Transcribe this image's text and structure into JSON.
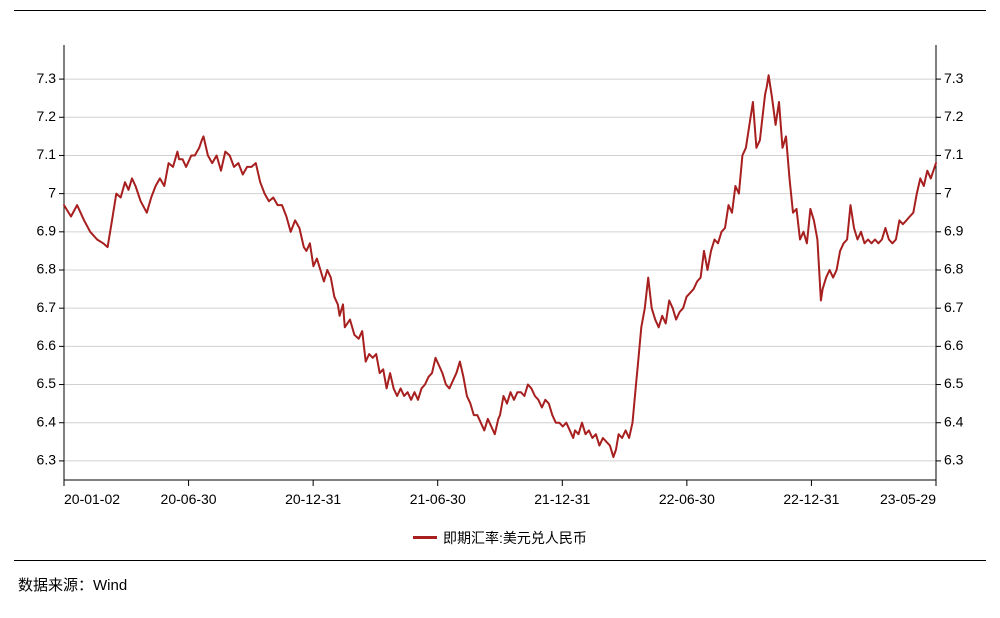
{
  "chart": {
    "type": "line",
    "series_name": "即期汇率:美元兑人民币",
    "line_color": "#a71f1f",
    "line_width": 2.0,
    "background_color": "#ffffff",
    "plot_border_color": "#000000",
    "plot_border_width": 1,
    "grid_color": "#d0d0d0",
    "grid_width": 1,
    "axis_label_fontsize": 14,
    "axis_label_color": "#000000",
    "ylim": [
      6.25,
      7.35
    ],
    "ytick_step": 0.1,
    "yticks": [
      6.3,
      6.4,
      6.5,
      6.6,
      6.7,
      6.8,
      6.9,
      7,
      7.1,
      7.2,
      7.3
    ],
    "ytick_labels": [
      "6.3",
      "6.4",
      "6.5",
      "6.6",
      "6.7",
      "6.8",
      "6.9",
      "7",
      "7.1",
      "7.2",
      "7.3"
    ],
    "x_range": [
      "2020-01-02",
      "2023-05-29"
    ],
    "xticks": [
      "2020-01-02",
      "2020-06-30",
      "2020-12-31",
      "2021-06-30",
      "2021-12-31",
      "2022-06-30",
      "2022-12-31",
      "2023-05-29"
    ],
    "xtick_labels": [
      "20-01-02",
      "20-06-30",
      "20-12-31",
      "21-06-30",
      "21-12-31",
      "22-06-30",
      "22-12-31",
      "23-05-29"
    ],
    "data": [
      [
        0.0,
        6.97
      ],
      [
        0.008,
        6.94
      ],
      [
        0.015,
        6.97
      ],
      [
        0.023,
        6.93
      ],
      [
        0.03,
        6.9
      ],
      [
        0.038,
        6.88
      ],
      [
        0.045,
        6.87
      ],
      [
        0.05,
        6.86
      ],
      [
        0.055,
        6.93
      ],
      [
        0.06,
        7.0
      ],
      [
        0.065,
        6.99
      ],
      [
        0.07,
        7.03
      ],
      [
        0.074,
        7.01
      ],
      [
        0.078,
        7.04
      ],
      [
        0.082,
        7.02
      ],
      [
        0.088,
        6.98
      ],
      [
        0.095,
        6.95
      ],
      [
        0.1,
        6.99
      ],
      [
        0.105,
        7.02
      ],
      [
        0.11,
        7.04
      ],
      [
        0.115,
        7.02
      ],
      [
        0.12,
        7.08
      ],
      [
        0.125,
        7.07
      ],
      [
        0.13,
        7.11
      ],
      [
        0.132,
        7.09
      ],
      [
        0.136,
        7.09
      ],
      [
        0.14,
        7.07
      ],
      [
        0.146,
        7.1
      ],
      [
        0.15,
        7.1
      ],
      [
        0.155,
        7.12
      ],
      [
        0.158,
        7.14
      ],
      [
        0.16,
        7.15
      ],
      [
        0.165,
        7.1
      ],
      [
        0.17,
        7.08
      ],
      [
        0.175,
        7.1
      ],
      [
        0.18,
        7.06
      ],
      [
        0.185,
        7.11
      ],
      [
        0.19,
        7.1
      ],
      [
        0.195,
        7.07
      ],
      [
        0.2,
        7.08
      ],
      [
        0.205,
        7.05
      ],
      [
        0.21,
        7.07
      ],
      [
        0.215,
        7.07
      ],
      [
        0.22,
        7.08
      ],
      [
        0.225,
        7.03
      ],
      [
        0.23,
        7.0
      ],
      [
        0.235,
        6.98
      ],
      [
        0.24,
        6.99
      ],
      [
        0.245,
        6.97
      ],
      [
        0.25,
        6.97
      ],
      [
        0.255,
        6.94
      ],
      [
        0.26,
        6.9
      ],
      [
        0.265,
        6.93
      ],
      [
        0.27,
        6.91
      ],
      [
        0.275,
        6.86
      ],
      [
        0.278,
        6.85
      ],
      [
        0.282,
        6.87
      ],
      [
        0.286,
        6.81
      ],
      [
        0.29,
        6.83
      ],
      [
        0.294,
        6.8
      ],
      [
        0.298,
        6.77
      ],
      [
        0.302,
        6.8
      ],
      [
        0.306,
        6.78
      ],
      [
        0.31,
        6.73
      ],
      [
        0.314,
        6.71
      ],
      [
        0.316,
        6.68
      ],
      [
        0.32,
        6.71
      ],
      [
        0.322,
        6.65
      ],
      [
        0.328,
        6.67
      ],
      [
        0.333,
        6.63
      ],
      [
        0.338,
        6.62
      ],
      [
        0.342,
        6.64
      ],
      [
        0.346,
        6.56
      ],
      [
        0.35,
        6.58
      ],
      [
        0.354,
        6.57
      ],
      [
        0.358,
        6.58
      ],
      [
        0.362,
        6.53
      ],
      [
        0.366,
        6.54
      ],
      [
        0.37,
        6.49
      ],
      [
        0.374,
        6.53
      ],
      [
        0.378,
        6.49
      ],
      [
        0.382,
        6.47
      ],
      [
        0.386,
        6.49
      ],
      [
        0.39,
        6.47
      ],
      [
        0.394,
        6.48
      ],
      [
        0.398,
        6.46
      ],
      [
        0.402,
        6.48
      ],
      [
        0.406,
        6.46
      ],
      [
        0.41,
        6.49
      ],
      [
        0.414,
        6.5
      ],
      [
        0.418,
        6.52
      ],
      [
        0.422,
        6.53
      ],
      [
        0.426,
        6.57
      ],
      [
        0.43,
        6.55
      ],
      [
        0.434,
        6.53
      ],
      [
        0.438,
        6.5
      ],
      [
        0.442,
        6.49
      ],
      [
        0.446,
        6.51
      ],
      [
        0.45,
        6.53
      ],
      [
        0.454,
        6.56
      ],
      [
        0.458,
        6.52
      ],
      [
        0.462,
        6.47
      ],
      [
        0.466,
        6.45
      ],
      [
        0.47,
        6.42
      ],
      [
        0.474,
        6.42
      ],
      [
        0.478,
        6.4
      ],
      [
        0.482,
        6.38
      ],
      [
        0.486,
        6.41
      ],
      [
        0.49,
        6.39
      ],
      [
        0.494,
        6.37
      ],
      [
        0.498,
        6.41
      ],
      [
        0.5,
        6.42
      ],
      [
        0.504,
        6.47
      ],
      [
        0.508,
        6.45
      ],
      [
        0.512,
        6.48
      ],
      [
        0.516,
        6.46
      ],
      [
        0.52,
        6.48
      ],
      [
        0.524,
        6.48
      ],
      [
        0.528,
        6.47
      ],
      [
        0.532,
        6.5
      ],
      [
        0.536,
        6.49
      ],
      [
        0.54,
        6.47
      ],
      [
        0.544,
        6.46
      ],
      [
        0.548,
        6.44
      ],
      [
        0.552,
        6.46
      ],
      [
        0.556,
        6.45
      ],
      [
        0.56,
        6.42
      ],
      [
        0.564,
        6.4
      ],
      [
        0.568,
        6.4
      ],
      [
        0.572,
        6.39
      ],
      [
        0.576,
        6.4
      ],
      [
        0.58,
        6.38
      ],
      [
        0.584,
        6.36
      ],
      [
        0.586,
        6.38
      ],
      [
        0.59,
        6.37
      ],
      [
        0.594,
        6.4
      ],
      [
        0.598,
        6.37
      ],
      [
        0.602,
        6.38
      ],
      [
        0.606,
        6.36
      ],
      [
        0.61,
        6.37
      ],
      [
        0.614,
        6.34
      ],
      [
        0.618,
        6.36
      ],
      [
        0.622,
        6.35
      ],
      [
        0.626,
        6.34
      ],
      [
        0.63,
        6.31
      ],
      [
        0.633,
        6.33
      ],
      [
        0.636,
        6.37
      ],
      [
        0.64,
        6.36
      ],
      [
        0.644,
        6.38
      ],
      [
        0.648,
        6.36
      ],
      [
        0.652,
        6.4
      ],
      [
        0.656,
        6.5
      ],
      [
        0.658,
        6.55
      ],
      [
        0.662,
        6.65
      ],
      [
        0.666,
        6.7
      ],
      [
        0.67,
        6.78
      ],
      [
        0.674,
        6.7
      ],
      [
        0.678,
        6.67
      ],
      [
        0.682,
        6.65
      ],
      [
        0.686,
        6.68
      ],
      [
        0.69,
        6.66
      ],
      [
        0.694,
        6.72
      ],
      [
        0.698,
        6.7
      ],
      [
        0.702,
        6.67
      ],
      [
        0.706,
        6.69
      ],
      [
        0.71,
        6.7
      ],
      [
        0.714,
        6.73
      ],
      [
        0.718,
        6.74
      ],
      [
        0.722,
        6.75
      ],
      [
        0.726,
        6.77
      ],
      [
        0.73,
        6.78
      ],
      [
        0.734,
        6.85
      ],
      [
        0.738,
        6.8
      ],
      [
        0.742,
        6.85
      ],
      [
        0.746,
        6.88
      ],
      [
        0.75,
        6.87
      ],
      [
        0.754,
        6.9
      ],
      [
        0.758,
        6.91
      ],
      [
        0.762,
        6.97
      ],
      [
        0.766,
        6.95
      ],
      [
        0.77,
        7.02
      ],
      [
        0.774,
        7.0
      ],
      [
        0.778,
        7.1
      ],
      [
        0.782,
        7.12
      ],
      [
        0.786,
        7.18
      ],
      [
        0.79,
        7.24
      ],
      [
        0.794,
        7.12
      ],
      [
        0.798,
        7.14
      ],
      [
        0.8,
        7.18
      ],
      [
        0.804,
        7.26
      ],
      [
        0.806,
        7.28
      ],
      [
        0.808,
        7.31
      ],
      [
        0.812,
        7.25
      ],
      [
        0.816,
        7.18
      ],
      [
        0.82,
        7.24
      ],
      [
        0.824,
        7.12
      ],
      [
        0.828,
        7.15
      ],
      [
        0.832,
        7.04
      ],
      [
        0.836,
        6.95
      ],
      [
        0.84,
        6.96
      ],
      [
        0.844,
        6.88
      ],
      [
        0.848,
        6.9
      ],
      [
        0.852,
        6.87
      ],
      [
        0.856,
        6.96
      ],
      [
        0.86,
        6.93
      ],
      [
        0.864,
        6.88
      ],
      [
        0.868,
        6.72
      ],
      [
        0.87,
        6.75
      ],
      [
        0.874,
        6.78
      ],
      [
        0.878,
        6.8
      ],
      [
        0.882,
        6.78
      ],
      [
        0.886,
        6.8
      ],
      [
        0.89,
        6.85
      ],
      [
        0.894,
        6.87
      ],
      [
        0.898,
        6.88
      ],
      [
        0.902,
        6.97
      ],
      [
        0.906,
        6.91
      ],
      [
        0.91,
        6.88
      ],
      [
        0.914,
        6.9
      ],
      [
        0.918,
        6.87
      ],
      [
        0.922,
        6.88
      ],
      [
        0.926,
        6.87
      ],
      [
        0.93,
        6.88
      ],
      [
        0.934,
        6.87
      ],
      [
        0.938,
        6.88
      ],
      [
        0.942,
        6.91
      ],
      [
        0.946,
        6.88
      ],
      [
        0.95,
        6.87
      ],
      [
        0.954,
        6.88
      ],
      [
        0.958,
        6.93
      ],
      [
        0.962,
        6.92
      ],
      [
        0.966,
        6.93
      ],
      [
        0.97,
        6.94
      ],
      [
        0.974,
        6.95
      ],
      [
        0.978,
        7.0
      ],
      [
        0.982,
        7.04
      ],
      [
        0.986,
        7.02
      ],
      [
        0.99,
        7.06
      ],
      [
        0.994,
        7.04
      ],
      [
        1.0,
        7.08
      ]
    ],
    "legend_position": "bottom-center",
    "legend_fontsize": 14
  },
  "source_label": "数据来源：Wind"
}
